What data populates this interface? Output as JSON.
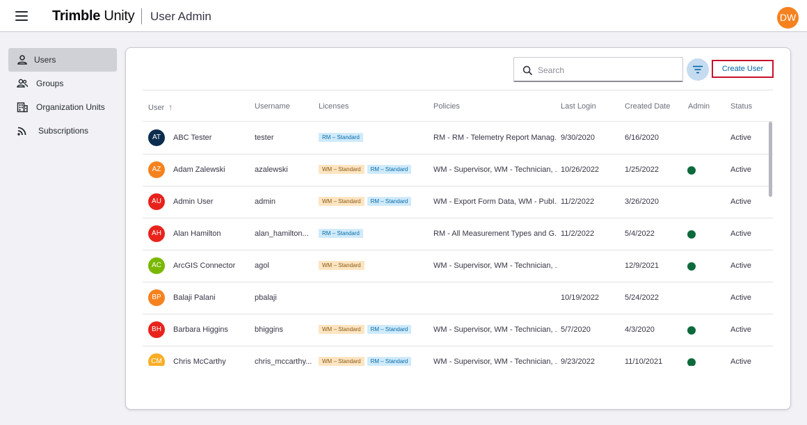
{
  "header": {
    "brand_bold": "Trimble",
    "brand_light": "Unity",
    "app_title": "User Admin",
    "user_initials": "DW"
  },
  "sidebar": {
    "items": [
      {
        "label": "Users",
        "icon": "person-icon",
        "active": true
      },
      {
        "label": "Groups",
        "icon": "people-icon",
        "active": false
      },
      {
        "label": "Organization Units",
        "icon": "building-icon",
        "active": false
      },
      {
        "label": "Subscriptions",
        "icon": "rss-icon",
        "active": false
      }
    ]
  },
  "toolbar": {
    "search_placeholder": "Search",
    "create_label": "Create User"
  },
  "table": {
    "columns": [
      "User",
      "Username",
      "Licenses",
      "Policies",
      "Last Login",
      "Created Date",
      "Admin",
      "Status"
    ],
    "sort_arrow": "↑",
    "rows": [
      {
        "initials": "AT",
        "color": "#0c2d4e",
        "name": "ABC Tester",
        "username": "tester",
        "licenses": [
          {
            "label": "RM – Standard",
            "kind": "rm"
          }
        ],
        "policies": "RM - RM - Telemetry Report Manag...",
        "last_login": "9/30/2020",
        "created": "6/16/2020",
        "admin": false,
        "status": "Active"
      },
      {
        "initials": "AZ",
        "color": "#f5821f",
        "name": "Adam Zalewski",
        "username": "azalewski",
        "licenses": [
          {
            "label": "WM – Standard",
            "kind": "wm"
          },
          {
            "label": "RM – Standard",
            "kind": "rm"
          }
        ],
        "policies": "WM - Supervisor, WM - Technician, ...",
        "last_login": "10/26/2022",
        "created": "1/25/2022",
        "admin": true,
        "status": "Active"
      },
      {
        "initials": "AU",
        "color": "#e8231c",
        "name": "Admin User",
        "username": "admin",
        "licenses": [
          {
            "label": "WM – Standard",
            "kind": "wm"
          },
          {
            "label": "RM – Standard",
            "kind": "rm"
          }
        ],
        "policies": "WM - Export Form Data, WM - Publ...",
        "last_login": "11/2/2022",
        "created": "3/26/2020",
        "admin": false,
        "status": "Active"
      },
      {
        "initials": "AH",
        "color": "#e8231c",
        "name": "Alan Hamilton",
        "username": "alan_hamilton...",
        "licenses": [
          {
            "label": "RM – Standard",
            "kind": "rm"
          }
        ],
        "policies": "RM - All Measurement Types and G...",
        "last_login": "11/2/2022",
        "created": "5/4/2022",
        "admin": true,
        "status": "Active"
      },
      {
        "initials": "AC",
        "color": "#7ab800",
        "name": "ArcGIS Connector",
        "username": "agol",
        "licenses": [
          {
            "label": "WM – Standard",
            "kind": "wm"
          }
        ],
        "policies": "WM - Supervisor, WM - Technician, ...",
        "last_login": "",
        "created": "12/9/2021",
        "admin": true,
        "status": "Active"
      },
      {
        "initials": "BP",
        "color": "#f5821f",
        "name": "Balaji Palani",
        "username": "pbalaji",
        "licenses": [],
        "policies": "",
        "last_login": "10/19/2022",
        "created": "5/24/2022",
        "admin": false,
        "status": "Active"
      },
      {
        "initials": "BH",
        "color": "#e8231c",
        "name": "Barbara Higgins",
        "username": "bhiggins",
        "licenses": [
          {
            "label": "WM – Standard",
            "kind": "wm"
          },
          {
            "label": "RM – Standard",
            "kind": "rm"
          }
        ],
        "policies": "WM - Supervisor, WM - Technician, ...",
        "last_login": "5/7/2020",
        "created": "4/3/2020",
        "admin": true,
        "status": "Active"
      },
      {
        "initials": "CM",
        "color": "#fbad26",
        "name": "Chris McCarthy",
        "username": "chris_mccarthy...",
        "licenses": [
          {
            "label": "WM – Standard",
            "kind": "wm"
          },
          {
            "label": "RM – Standard",
            "kind": "rm"
          }
        ],
        "policies": "WM - Supervisor, WM - Technician, ...",
        "last_login": "9/23/2022",
        "created": "11/10/2021",
        "admin": true,
        "status": "Active"
      }
    ]
  }
}
